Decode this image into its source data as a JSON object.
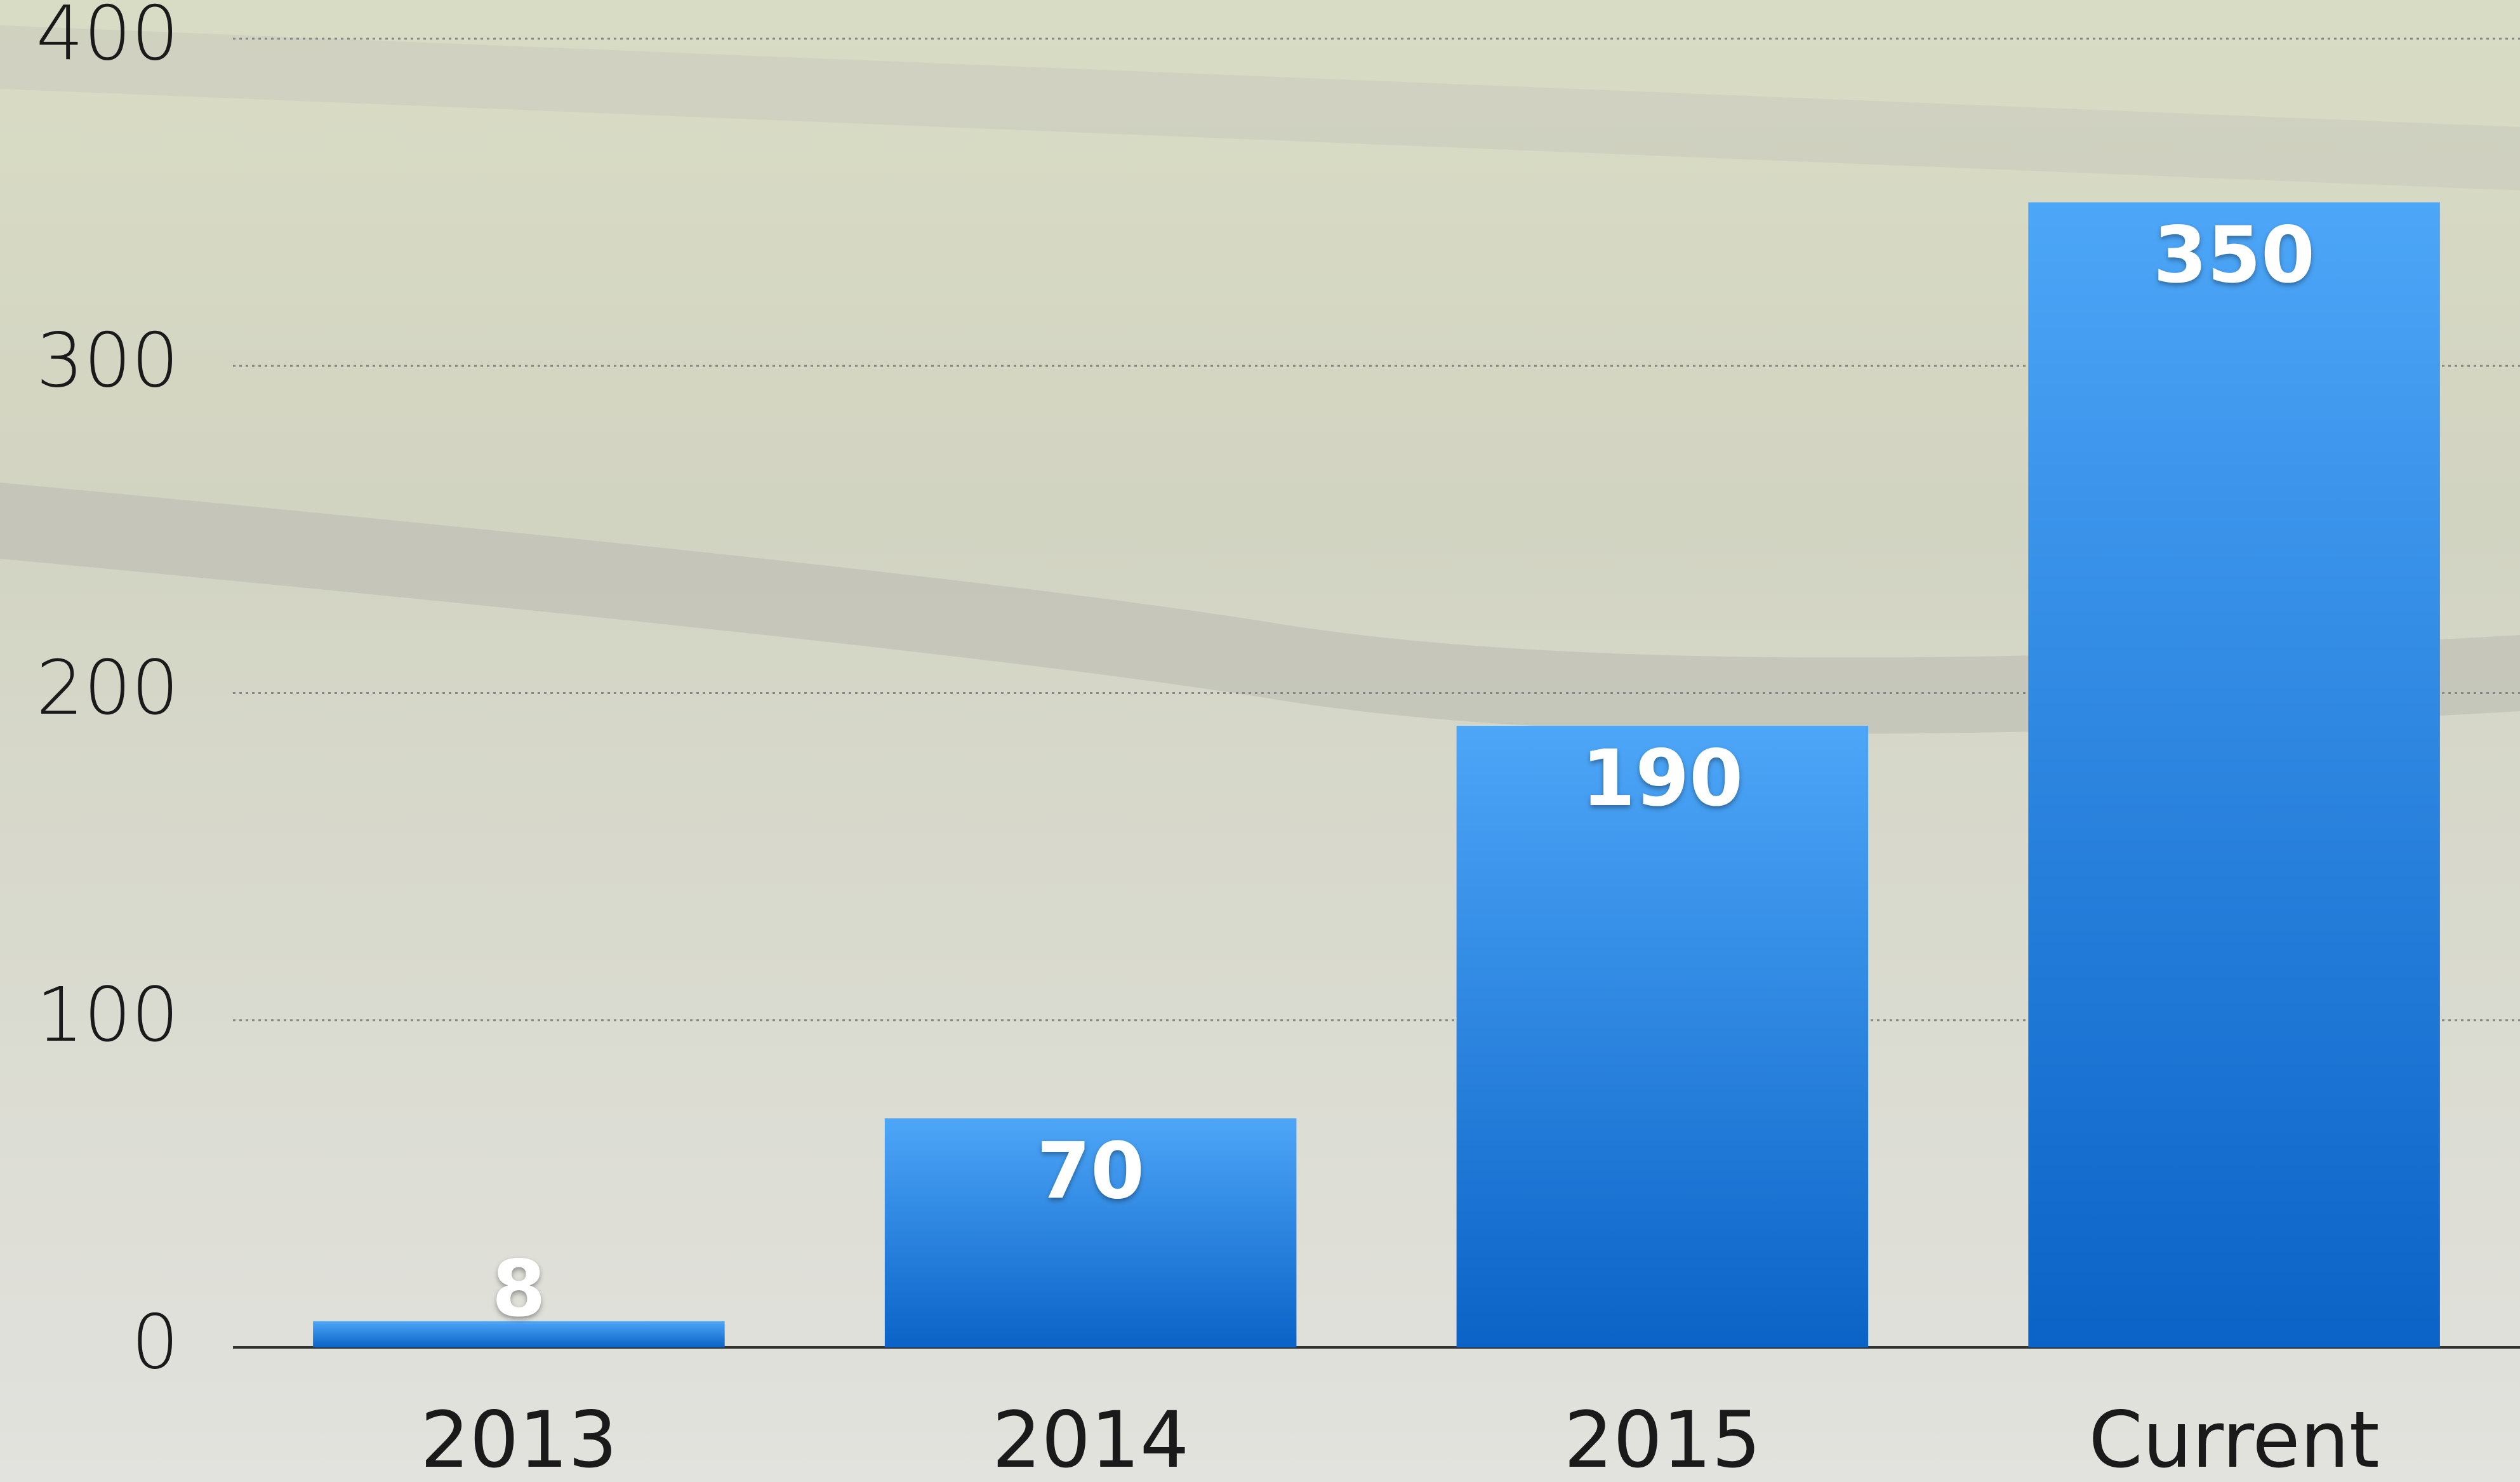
{
  "chart_data": {
    "type": "bar",
    "categories": [
      "2013",
      "2014",
      "2015",
      "Current"
    ],
    "values": [
      8,
      70,
      190,
      350
    ],
    "color": "#1f7fe0",
    "ylim": [
      0,
      400
    ],
    "yticks": [
      0,
      100,
      200,
      300,
      400
    ],
    "grid": true
  }
}
